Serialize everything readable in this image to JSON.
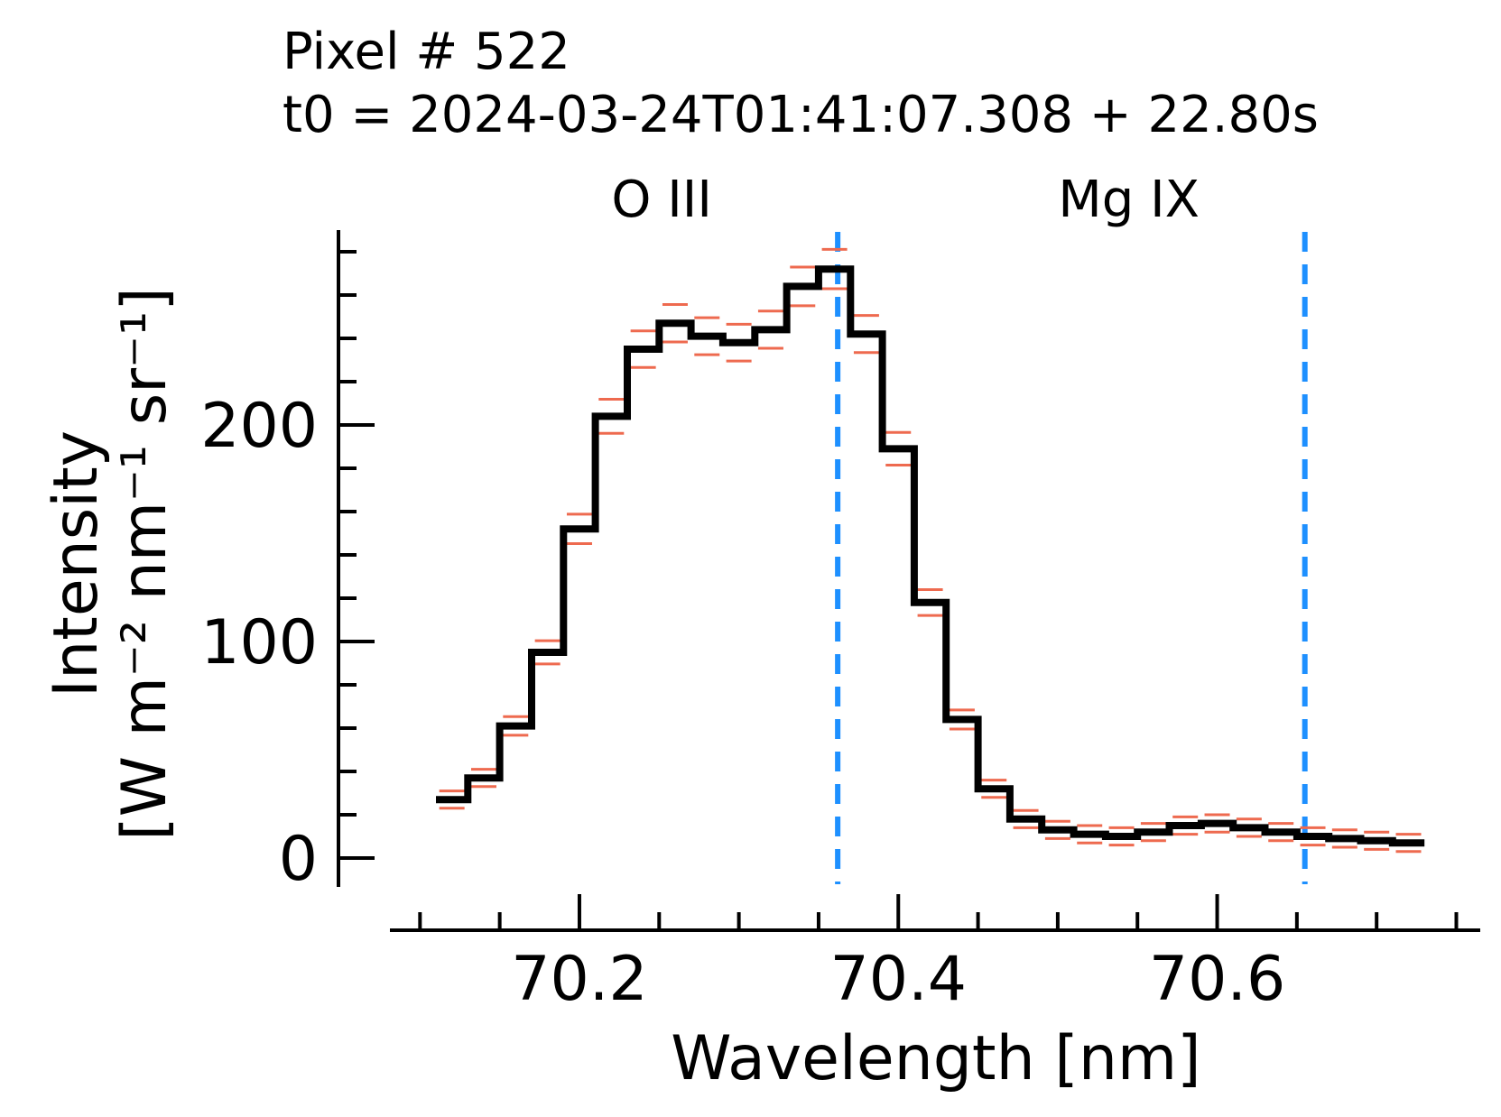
{
  "chart_data": {
    "type": "line",
    "step": true,
    "title_lines": [
      "Pixel # 522",
      "t0 = 2024-03-24T01:41:07.308 + 22.80s"
    ],
    "xlabel": "Wavelength [nm]",
    "ylabel_lines": [
      "Intensity",
      "[W m⁻² nm⁻¹ sr⁻¹]"
    ],
    "xlim": [
      70.08,
      70.765
    ],
    "ylim": [
      -10,
      290
    ],
    "x_ticks": [
      70.2,
      70.4,
      70.6
    ],
    "x_tick_labels": [
      "70.2",
      "70.4",
      "70.6"
    ],
    "y_ticks": [
      0,
      100,
      200
    ],
    "y_tick_labels": [
      "0",
      "100",
      "200"
    ],
    "x_minor_step": 0.05,
    "y_minor_step": 20,
    "bins": {
      "edges": [
        70.11,
        70.13,
        70.15,
        70.17,
        70.19,
        70.21,
        70.23,
        70.25,
        70.27,
        70.29,
        70.31,
        70.33,
        70.35,
        70.37,
        70.39,
        70.41,
        70.43,
        70.45,
        70.47,
        70.49,
        70.51,
        70.53,
        70.55,
        70.57,
        70.59,
        70.61,
        70.63,
        70.65,
        70.67,
        70.69,
        70.71,
        70.73
      ],
      "values": [
        27,
        37,
        61,
        95,
        152,
        204,
        235,
        247,
        241,
        238,
        244,
        264,
        272,
        242,
        189,
        118,
        64,
        32,
        18,
        13,
        11,
        10,
        12,
        15,
        16,
        14,
        12,
        10,
        9,
        8,
        7
      ]
    },
    "error_color": "#ee6a4f",
    "series": [
      {
        "color": "#000000",
        "style": "steps"
      }
    ],
    "reference_lines": [
      {
        "label": "O III",
        "x": 70.362,
        "color": "#1e90ff",
        "style": "dashed"
      },
      {
        "label": "Mg IX",
        "x": 70.655,
        "color": "#1e90ff",
        "style": "dashed"
      }
    ],
    "grid": false,
    "legend": "none"
  }
}
